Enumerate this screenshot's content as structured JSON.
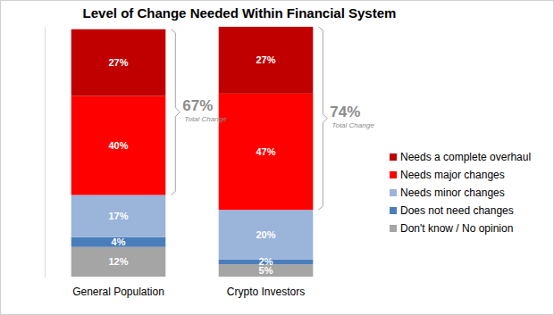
{
  "chart_data": {
    "type": "bar",
    "title": "Level of Change Needed Within Financial System",
    "categories": [
      "General Population",
      "Crypto Investors"
    ],
    "series": [
      {
        "name": "Needs a complete overhaul",
        "color": "#C00000",
        "values": [
          27,
          27
        ],
        "value_labels": [
          "27%",
          "27%"
        ]
      },
      {
        "name": "Needs major changes",
        "color": "#FF0000",
        "values": [
          40,
          47
        ],
        "value_labels": [
          "40%",
          "47%"
        ]
      },
      {
        "name": "Needs minor changes",
        "color": "#9BB4DA",
        "values": [
          17,
          20
        ],
        "value_labels": [
          "17%",
          "20%"
        ]
      },
      {
        "name": "Does not need changes",
        "color": "#4A7EBB",
        "values": [
          4,
          2
        ],
        "value_labels": [
          "4%",
          "2%"
        ]
      },
      {
        "name": "Don't know / No opinion",
        "color": "#A5A5A5",
        "values": [
          12,
          5
        ],
        "value_labels": [
          "12%",
          "5%"
        ]
      }
    ],
    "stacked": true,
    "data_labels": true,
    "tick_labels": "x",
    "legend": "right",
    "ylim": [
      0,
      101
    ],
    "annotations": [
      {
        "category": "General Population",
        "value": 67,
        "label": "67%",
        "text": "Total Change"
      },
      {
        "category": "Crypto Investors",
        "value": 74,
        "label": "74%",
        "text": "Total Change"
      }
    ]
  }
}
